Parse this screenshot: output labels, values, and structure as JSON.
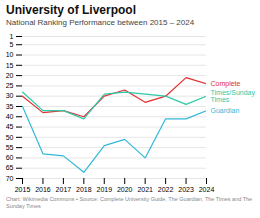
{
  "chart_data": {
    "type": "line",
    "title": "University of Liverpool",
    "subtitle": "National Ranking Performance between 2015 – 2024",
    "caption": "Chart: Wikimedia Commons • Source: Complete University Guide, The Guardian, The Times and The Sunday Times",
    "x": [
      2015,
      2016,
      2017,
      2018,
      2019,
      2020,
      2021,
      2022,
      2023,
      2024
    ],
    "series": [
      {
        "name": "Complete",
        "color": "#e03030",
        "values": [
          30,
          38,
          37,
          40,
          30,
          27,
          33,
          30,
          21,
          24
        ]
      },
      {
        "name": "Times/Sunday\nTimes",
        "color": "#2ec9a8",
        "values": [
          28,
          37,
          37,
          41,
          29,
          28,
          29,
          30,
          34,
          30
        ]
      },
      {
        "name": "Guardian",
        "color": "#30b8d8",
        "values": [
          35,
          58,
          59,
          67,
          54,
          51,
          60,
          41,
          41,
          37
        ]
      }
    ],
    "xlim": [
      2015,
      2024
    ],
    "xticks": [
      2015,
      2016,
      2017,
      2018,
      2019,
      2020,
      2021,
      2022,
      2023,
      2024
    ],
    "ylim": [
      70,
      1
    ],
    "yticks": [
      1,
      5,
      10,
      15,
      20,
      25,
      30,
      35,
      40,
      45,
      50,
      55,
      60,
      65,
      70
    ],
    "grid": true
  }
}
